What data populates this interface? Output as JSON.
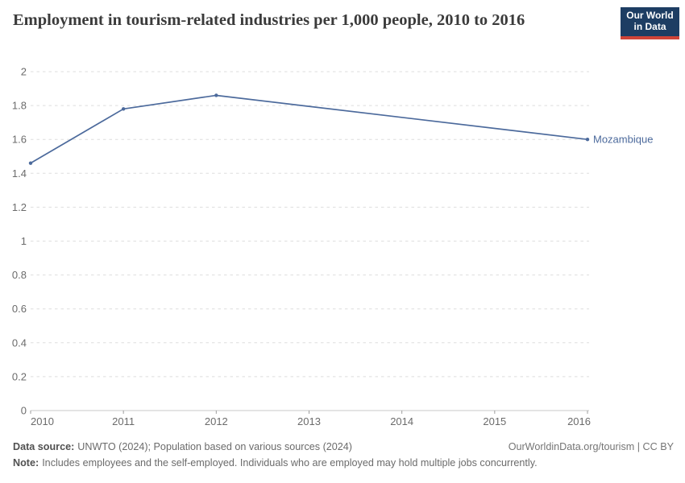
{
  "header": {
    "title": "Employment in tourism-related industries per 1,000 people, 2010 to 2016",
    "logo": {
      "line1": "Our World",
      "line2": "in Data"
    }
  },
  "chart_data": {
    "type": "line",
    "title": "Employment in tourism-related industries per 1,000 people, 2010 to 2016",
    "xlabel": "",
    "ylabel": "",
    "xlim": [
      2010,
      2016
    ],
    "ylim": [
      0,
      2
    ],
    "x_ticks": [
      2010,
      2011,
      2012,
      2013,
      2014,
      2015,
      2016
    ],
    "y_ticks": [
      0,
      0.2,
      0.4,
      0.6,
      0.8,
      1,
      1.2,
      1.4,
      1.6,
      1.8,
      2
    ],
    "grid": "horizontal-dashed",
    "legend_position": "end-of-line-label",
    "series": [
      {
        "name": "Mozambique",
        "color": "#4C6A9C",
        "points": [
          {
            "x": 2010,
            "y": 1.46
          },
          {
            "x": 2011,
            "y": 1.78
          },
          {
            "x": 2012,
            "y": 1.86
          },
          {
            "x": 2016,
            "y": 1.6
          }
        ]
      }
    ]
  },
  "footer": {
    "source_label": "Data source:",
    "source_text": "UNWTO (2024); Population based on various sources (2024)",
    "credit": "OurWorldinData.org/tourism | CC BY",
    "note_label": "Note:",
    "note_text": "Includes employees and the self-employed. Individuals who are employed may hold multiple jobs concurrently."
  },
  "colors": {
    "accent_line": "#4C6A9C",
    "logo_bg": "#1d3d63",
    "logo_red": "#d04438",
    "grid": "#dedede",
    "axis": "#c8c8c8",
    "axis_tick": "#9e9e9e",
    "tick_text": "#6b6b6b",
    "title_text": "#3b3b3b",
    "footer_text": "#6b6b6b"
  }
}
